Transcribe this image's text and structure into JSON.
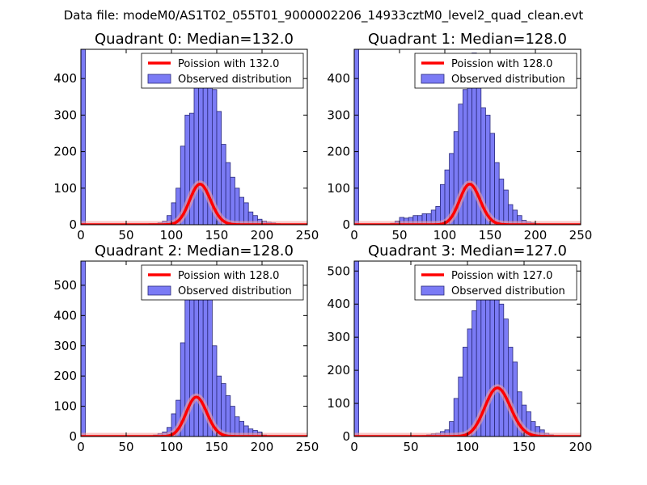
{
  "figure_title": "Data file: modeM0/AS1T02_055T01_9000002206_14933cztM0_level2_quad_clean.evt",
  "colors": {
    "bars": "#7b7bf5",
    "bar_edge": "#2a2a7a",
    "poisson": "#ff0000",
    "poisson_halo": "#f4a0a0"
  },
  "chart_data": [
    {
      "type": "bar",
      "title": "Quadrant 0: Median=132.0",
      "xlim": [
        0,
        250
      ],
      "ylim": [
        0,
        480
      ],
      "xticks": [
        0,
        50,
        100,
        150,
        200,
        250
      ],
      "yticks": [
        0,
        100,
        200,
        300,
        400
      ],
      "legend": [
        "Poission with 132.0",
        "Observed distribution"
      ],
      "legend_position": "top-right",
      "poisson_mean": 132.0,
      "poisson_scale": 3200,
      "bins_start": 0,
      "bin_width": 5,
      "values": [
        480,
        0,
        0,
        0,
        0,
        0,
        0,
        0,
        0,
        0,
        0,
        0,
        0,
        0,
        0,
        3,
        3,
        5,
        10,
        25,
        60,
        100,
        215,
        300,
        305,
        400,
        410,
        435,
        440,
        370,
        310,
        220,
        170,
        130,
        100,
        75,
        60,
        35,
        25,
        15,
        10,
        7,
        5,
        3,
        2,
        1,
        0,
        0,
        0,
        0
      ]
    },
    {
      "type": "bar",
      "title": "Quadrant 1: Median=128.0",
      "xlim": [
        0,
        250
      ],
      "ylim": [
        0,
        480
      ],
      "xticks": [
        0,
        50,
        100,
        150,
        200,
        250
      ],
      "yticks": [
        0,
        100,
        200,
        300,
        400
      ],
      "legend": [
        "Poission with 128.0",
        "Observed distribution"
      ],
      "legend_position": "top-right",
      "poisson_mean": 128.0,
      "poisson_scale": 3150,
      "bins_start": 0,
      "bin_width": 5,
      "values": [
        480,
        0,
        0,
        0,
        0,
        0,
        1,
        2,
        4,
        10,
        20,
        18,
        20,
        25,
        25,
        30,
        30,
        40,
        50,
        110,
        150,
        195,
        255,
        330,
        370,
        440,
        470,
        395,
        320,
        300,
        250,
        170,
        125,
        95,
        55,
        40,
        25,
        12,
        8,
        5,
        3,
        2,
        1,
        0,
        0,
        0,
        0,
        0,
        0,
        0
      ]
    },
    {
      "type": "bar",
      "title": "Quadrant 2: Median=128.0",
      "xlim": [
        0,
        250
      ],
      "ylim": [
        0,
        580
      ],
      "xticks": [
        0,
        50,
        100,
        150,
        200,
        250
      ],
      "yticks": [
        0,
        100,
        200,
        300,
        400,
        500
      ],
      "legend": [
        "Poission with 128.0",
        "Observed distribution"
      ],
      "legend_position": "top-right",
      "poisson_mean": 128.0,
      "poisson_scale": 3700,
      "bins_start": 0,
      "bin_width": 5,
      "values": [
        580,
        0,
        0,
        0,
        0,
        0,
        0,
        0,
        0,
        0,
        0,
        0,
        0,
        0,
        0,
        3,
        5,
        10,
        15,
        30,
        75,
        120,
        310,
        455,
        490,
        520,
        535,
        490,
        460,
        300,
        200,
        175,
        135,
        100,
        65,
        50,
        35,
        25,
        20,
        15,
        5,
        3,
        2,
        1,
        0,
        0,
        0,
        0,
        0,
        0
      ]
    },
    {
      "type": "bar",
      "title": "Quadrant 3: Median=127.0",
      "xlim": [
        0,
        200
      ],
      "ylim": [
        0,
        530
      ],
      "xticks": [
        0,
        50,
        100,
        150,
        200
      ],
      "yticks": [
        0,
        100,
        200,
        300,
        400,
        500
      ],
      "legend": [
        "Poission with 127.0",
        "Observed distribution"
      ],
      "legend_position": "top-right",
      "poisson_mean": 127.0,
      "poisson_scale": 4150,
      "bins_start": 0,
      "bin_width": 4,
      "values": [
        530,
        0,
        0,
        0,
        0,
        0,
        0,
        0,
        0,
        0,
        0,
        0,
        0,
        0,
        1,
        3,
        5,
        8,
        10,
        15,
        20,
        45,
        115,
        180,
        270,
        325,
        380,
        430,
        450,
        510,
        495,
        470,
        400,
        355,
        270,
        225,
        135,
        95,
        75,
        45,
        30,
        20,
        10,
        5,
        2,
        1,
        0,
        0,
        0,
        0
      ]
    }
  ]
}
